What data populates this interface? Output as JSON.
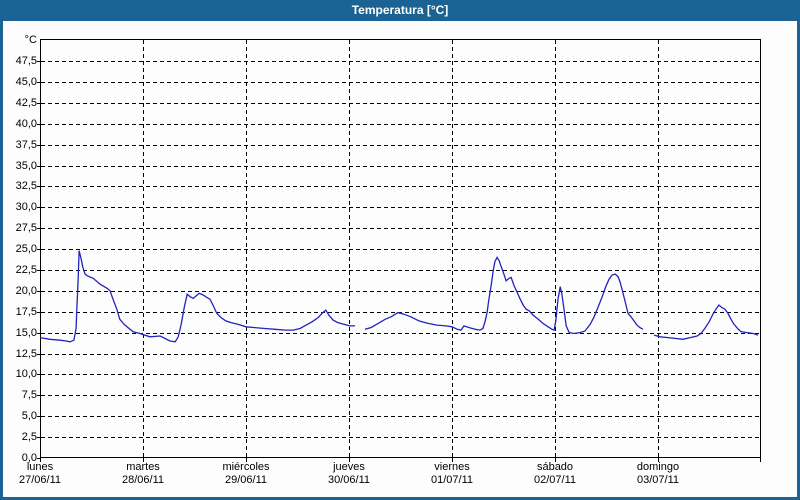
{
  "window": {
    "title": "Temperatura [°C]",
    "titlebar_color": "#1c6395",
    "border_color": "#1c6395",
    "background_color": "#fdfdfd"
  },
  "chart_data": {
    "type": "line",
    "title": "Temperatura [°C]",
    "y_unit_label": "°C",
    "ylabel": "",
    "xlabel": "",
    "ylim": [
      0,
      50.2
    ],
    "xlim_hours": [
      0,
      168
    ],
    "grid": "dashed-black",
    "legend": "none",
    "line_color": "#2323bb",
    "grid_color": "#000000",
    "y_ticks": [
      0,
      2.5,
      5,
      7.5,
      10,
      12.5,
      15,
      17.5,
      20,
      22.5,
      25,
      27.5,
      30,
      32.5,
      35,
      37.5,
      40,
      42.5,
      45,
      47.5
    ],
    "y_tick_labels": [
      "0,0",
      "2,5",
      "5,0",
      "7,5",
      "10,0",
      "12,5",
      "15,0",
      "17,5",
      "20,0",
      "22,5",
      "25,0",
      "27,5",
      "30,0",
      "32,5",
      "35,0",
      "37,5",
      "40,0",
      "42,5",
      "45,0",
      "47,5"
    ],
    "x_day_ticks": [
      {
        "hour": 0,
        "day": "lunes",
        "date": "27/06/11"
      },
      {
        "hour": 24,
        "day": "martes",
        "date": "28/06/11"
      },
      {
        "hour": 48,
        "day": "miércoles",
        "date": "29/06/11"
      },
      {
        "hour": 72,
        "day": "jueves",
        "date": "30/06/11"
      },
      {
        "hour": 96,
        "day": "viernes",
        "date": "01/07/11"
      },
      {
        "hour": 120,
        "day": "sábado",
        "date": "02/07/11"
      },
      {
        "hour": 144,
        "day": "domingo",
        "date": "03/07/11"
      }
    ],
    "series": [
      {
        "name": "Temperatura",
        "unit": "°C",
        "segments": [
          [
            [
              0,
              14.4
            ],
            [
              2.3,
              14.2
            ],
            [
              4.7,
              14.1
            ],
            [
              6.1,
              14.0
            ],
            [
              7,
              13.9
            ],
            [
              7.9,
              14.1
            ],
            [
              8.4,
              15.5
            ],
            [
              8.6,
              18
            ],
            [
              8.9,
              21.5
            ],
            [
              9.1,
              24.8
            ],
            [
              9.6,
              23.8
            ],
            [
              10,
              22.8
            ],
            [
              10.5,
              22
            ],
            [
              11,
              21.8
            ],
            [
              12.4,
              21.5
            ],
            [
              14,
              20.8
            ],
            [
              15.6,
              20.3
            ],
            [
              16.3,
              20
            ],
            [
              17,
              19
            ],
            [
              17.9,
              17.8
            ],
            [
              18.6,
              16.6
            ],
            [
              19.6,
              16
            ],
            [
              20.5,
              15.6
            ],
            [
              21.7,
              15.1
            ],
            [
              23.3,
              14.9
            ],
            [
              25.6,
              14.5
            ],
            [
              28,
              14.6
            ],
            [
              30.3,
              14
            ],
            [
              31.5,
              13.9
            ],
            [
              32.2,
              14.5
            ],
            [
              32.9,
              16
            ],
            [
              33.6,
              18
            ],
            [
              34.3,
              19.6
            ],
            [
              35,
              19.3
            ],
            [
              35.7,
              19.1
            ],
            [
              36.4,
              19.4
            ],
            [
              37.1,
              19.7
            ],
            [
              38,
              19.5
            ],
            [
              38.9,
              19.2
            ],
            [
              39.6,
              19
            ],
            [
              40.3,
              18.3
            ],
            [
              41.2,
              17.3
            ],
            [
              42.2,
              16.8
            ],
            [
              43.3,
              16.4
            ],
            [
              44.5,
              16.2
            ],
            [
              46.1,
              16
            ],
            [
              48,
              15.7
            ],
            [
              50.1,
              15.6
            ],
            [
              52.4,
              15.5
            ],
            [
              54.8,
              15.4
            ],
            [
              57.1,
              15.3
            ],
            [
              59,
              15.3
            ],
            [
              60.6,
              15.5
            ],
            [
              62,
              15.9
            ],
            [
              63.4,
              16.3
            ],
            [
              64.8,
              16.8
            ],
            [
              65.9,
              17.4
            ],
            [
              66.6,
              17.7
            ],
            [
              67.3,
              17.1
            ],
            [
              68.3,
              16.5
            ],
            [
              69.4,
              16.2
            ],
            [
              70.8,
              16
            ],
            [
              72.2,
              15.8
            ],
            [
              73.4,
              15.8
            ]
          ],
          [
            [
              75.7,
              15.4
            ],
            [
              77.1,
              15.6
            ],
            [
              78.8,
              16.1
            ],
            [
              80.4,
              16.6
            ],
            [
              81.8,
              16.9
            ],
            [
              83.4,
              17.4
            ],
            [
              84.8,
              17.2
            ],
            [
              86.4,
              16.9
            ],
            [
              88.3,
              16.4
            ],
            [
              90.4,
              16.1
            ],
            [
              92.5,
              15.9
            ],
            [
              94.6,
              15.8
            ],
            [
              96,
              15.7
            ],
            [
              97.2,
              15.4
            ],
            [
              98.1,
              15.3
            ],
            [
              98.8,
              15.8
            ],
            [
              100,
              15.6
            ],
            [
              101.4,
              15.4
            ],
            [
              102.5,
              15.3
            ],
            [
              103.2,
              15.5
            ],
            [
              103.7,
              16.3
            ],
            [
              104.2,
              17.5
            ],
            [
              104.6,
              19
            ],
            [
              105.1,
              20.6
            ],
            [
              105.6,
              22.4
            ],
            [
              106,
              23.5
            ],
            [
              106.5,
              24
            ],
            [
              107,
              23.6
            ],
            [
              107.4,
              23
            ],
            [
              108.1,
              22
            ],
            [
              108.6,
              21.2
            ],
            [
              109.3,
              21.5
            ],
            [
              109.8,
              21.6
            ],
            [
              110.4,
              20.7
            ],
            [
              111.2,
              19.8
            ],
            [
              111.9,
              19
            ],
            [
              112.6,
              18.3
            ],
            [
              113.3,
              17.8
            ],
            [
              114,
              17.6
            ],
            [
              114.9,
              17.1
            ],
            [
              116.1,
              16.6
            ],
            [
              117.2,
              16.1
            ],
            [
              118.4,
              15.7
            ],
            [
              119.3,
              15.4
            ],
            [
              119.8,
              15.3
            ],
            [
              120.2,
              16.5
            ],
            [
              120.7,
              19
            ],
            [
              121.2,
              20.5
            ],
            [
              121.6,
              19.6
            ],
            [
              122.1,
              17.8
            ],
            [
              122.6,
              15.8
            ],
            [
              123.3,
              15
            ],
            [
              124.4,
              14.9
            ],
            [
              125.8,
              15
            ],
            [
              127,
              15.2
            ],
            [
              128.2,
              16
            ],
            [
              129.1,
              16.9
            ],
            [
              130,
              18
            ],
            [
              131,
              19.3
            ],
            [
              131.9,
              20.6
            ],
            [
              132.6,
              21.4
            ],
            [
              133.3,
              21.9
            ],
            [
              134,
              22
            ],
            [
              134.7,
              21.7
            ],
            [
              135.2,
              21
            ],
            [
              135.6,
              20.2
            ],
            [
              136.1,
              19.2
            ],
            [
              136.6,
              18.2
            ],
            [
              137,
              17.3
            ],
            [
              137.7,
              16.9
            ],
            [
              138.4,
              16.4
            ],
            [
              139.1,
              15.9
            ],
            [
              139.8,
              15.6
            ],
            [
              140.5,
              15.4
            ]
          ],
          [
            [
              143.1,
              14.7
            ],
            [
              144.5,
              14.5
            ],
            [
              146.3,
              14.4
            ],
            [
              148.2,
              14.3
            ],
            [
              149.8,
              14.2
            ],
            [
              151.5,
              14.4
            ],
            [
              153.1,
              14.6
            ],
            [
              154,
              14.9
            ],
            [
              154.9,
              15.5
            ],
            [
              155.9,
              16.3
            ],
            [
              156.8,
              17.2
            ],
            [
              157.5,
              17.8
            ],
            [
              158.2,
              18.3
            ],
            [
              158.9,
              18
            ],
            [
              159.6,
              17.8
            ],
            [
              160.3,
              17.3
            ],
            [
              161,
              16.6
            ],
            [
              161.7,
              16
            ],
            [
              162.7,
              15.4
            ],
            [
              163.4,
              15.1
            ],
            [
              164.8,
              15
            ],
            [
              166.2,
              14.9
            ],
            [
              167.3,
              14.7
            ]
          ]
        ]
      }
    ]
  }
}
